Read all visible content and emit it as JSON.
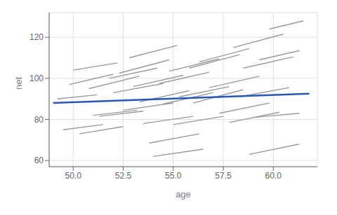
{
  "chart_data": {
    "type": "line",
    "title": "",
    "xlabel": "age",
    "ylabel": "net",
    "xlim": [
      48.8,
      62.2
    ],
    "ylim": [
      57,
      132
    ],
    "xticks": [
      {
        "value": 50.0,
        "label": "50.0"
      },
      52.5,
      {
        "value": 55.0,
        "label": "55.0"
      },
      57.5,
      {
        "value": 60.0,
        "label": "60.0"
      }
    ],
    "yticks": [
      60,
      80,
      100,
      120
    ],
    "grid": true,
    "series": [
      {
        "color": "#999999",
        "x": [
          49.2,
          51.2
        ],
        "values": [
          90.0,
          92.0
        ]
      },
      {
        "color": "#999999",
        "x": [
          49.5,
          51.5
        ],
        "values": [
          75.0,
          77.5
        ]
      },
      {
        "color": "#999999",
        "x": [
          49.8,
          52.0
        ],
        "values": [
          97.0,
          102.0
        ]
      },
      {
        "color": "#999999",
        "x": [
          50.0,
          52.2
        ],
        "values": [
          104.0,
          107.5
        ]
      },
      {
        "color": "#999999",
        "x": [
          50.3,
          52.5
        ],
        "values": [
          73.0,
          76.5
        ]
      },
      {
        "color": "#999999",
        "x": [
          50.8,
          53.3
        ],
        "values": [
          95.0,
          101.0
        ]
      },
      {
        "color": "#999999",
        "x": [
          51.0,
          53.2
        ],
        "values": [
          82.0,
          84.5
        ]
      },
      {
        "color": "#999999",
        "x": [
          51.3,
          53.5
        ],
        "values": [
          81.5,
          84.0
        ]
      },
      {
        "color": "#999999",
        "x": [
          51.8,
          54.2
        ],
        "values": [
          100.0,
          105.0
        ]
      },
      {
        "color": "#999999",
        "x": [
          52.0,
          54.5
        ],
        "values": [
          93.0,
          97.5
        ]
      },
      {
        "color": "#999999",
        "x": [
          52.3,
          54.8
        ],
        "values": [
          102.5,
          109.0
        ]
      },
      {
        "color": "#999999",
        "x": [
          52.5,
          55.0
        ],
        "values": [
          84.5,
          88.0
        ]
      },
      {
        "color": "#999999",
        "x": [
          52.8,
          55.2
        ],
        "values": [
          110.0,
          116.0
        ]
      },
      {
        "color": "#999999",
        "x": [
          53.0,
          55.5
        ],
        "values": [
          96.0,
          101.5
        ]
      },
      {
        "color": "#999999",
        "x": [
          53.3,
          55.8
        ],
        "values": [
          88.5,
          94.0
        ]
      },
      {
        "color": "#999999",
        "x": [
          53.5,
          56.0
        ],
        "values": [
          78.0,
          81.5
        ]
      },
      {
        "color": "#999999",
        "x": [
          53.8,
          56.3
        ],
        "values": [
          68.5,
          73.0
        ]
      },
      {
        "color": "#999999",
        "x": [
          54.0,
          56.5
        ],
        "values": [
          62.0,
          65.5
        ]
      },
      {
        "color": "#999999",
        "x": [
          54.3,
          56.8
        ],
        "values": [
          97.5,
          103.0
        ]
      },
      {
        "color": "#999999",
        "x": [
          54.5,
          57.0
        ],
        "values": [
          87.5,
          93.0
        ]
      },
      {
        "color": "#999999",
        "x": [
          54.8,
          57.3
        ],
        "values": [
          103.5,
          109.5
        ]
      },
      {
        "color": "#999999",
        "x": [
          55.0,
          57.5
        ],
        "values": [
          77.5,
          81.5
        ]
      },
      {
        "color": "#999999",
        "x": [
          55.3,
          57.8
        ],
        "values": [
          91.0,
          96.0
        ]
      },
      {
        "color": "#999999",
        "x": [
          55.8,
          58.3
        ],
        "values": [
          105.0,
          111.5
        ]
      },
      {
        "color": "#999999",
        "x": [
          56.0,
          58.5
        ],
        "values": [
          88.0,
          94.5
        ]
      },
      {
        "color": "#999999",
        "x": [
          56.3,
          58.8
        ],
        "values": [
          108.0,
          114.5
        ]
      },
      {
        "color": "#999999",
        "x": [
          56.8,
          59.3
        ],
        "values": [
          95.5,
          101.0
        ]
      },
      {
        "color": "#999999",
        "x": [
          57.3,
          59.8
        ],
        "values": [
          83.0,
          88.0
        ]
      },
      {
        "color": "#999999",
        "x": [
          57.8,
          60.3
        ],
        "values": [
          78.5,
          83.5
        ]
      },
      {
        "color": "#999999",
        "x": [
          58.0,
          60.5
        ],
        "values": [
          115.0,
          121.5
        ]
      },
      {
        "color": "#999999",
        "x": [
          58.3,
          60.8
        ],
        "values": [
          91.0,
          95.5
        ]
      },
      {
        "color": "#999999",
        "x": [
          58.5,
          61.0
        ],
        "values": [
          105.0,
          110.5
        ]
      },
      {
        "color": "#999999",
        "x": [
          58.8,
          61.3
        ],
        "values": [
          63.0,
          68.0
        ]
      },
      {
        "color": "#999999",
        "x": [
          59.0,
          61.3
        ],
        "values": [
          81.0,
          83.0
        ]
      },
      {
        "color": "#999999",
        "x": [
          59.3,
          61.3
        ],
        "values": [
          109.0,
          113.5
        ]
      },
      {
        "color": "#999999",
        "x": [
          59.8,
          61.5
        ],
        "values": [
          124.0,
          128.0
        ]
      },
      {
        "color": "#2255CC",
        "x": [
          49.0,
          61.8
        ],
        "values": [
          88.0,
          92.5
        ]
      }
    ]
  }
}
